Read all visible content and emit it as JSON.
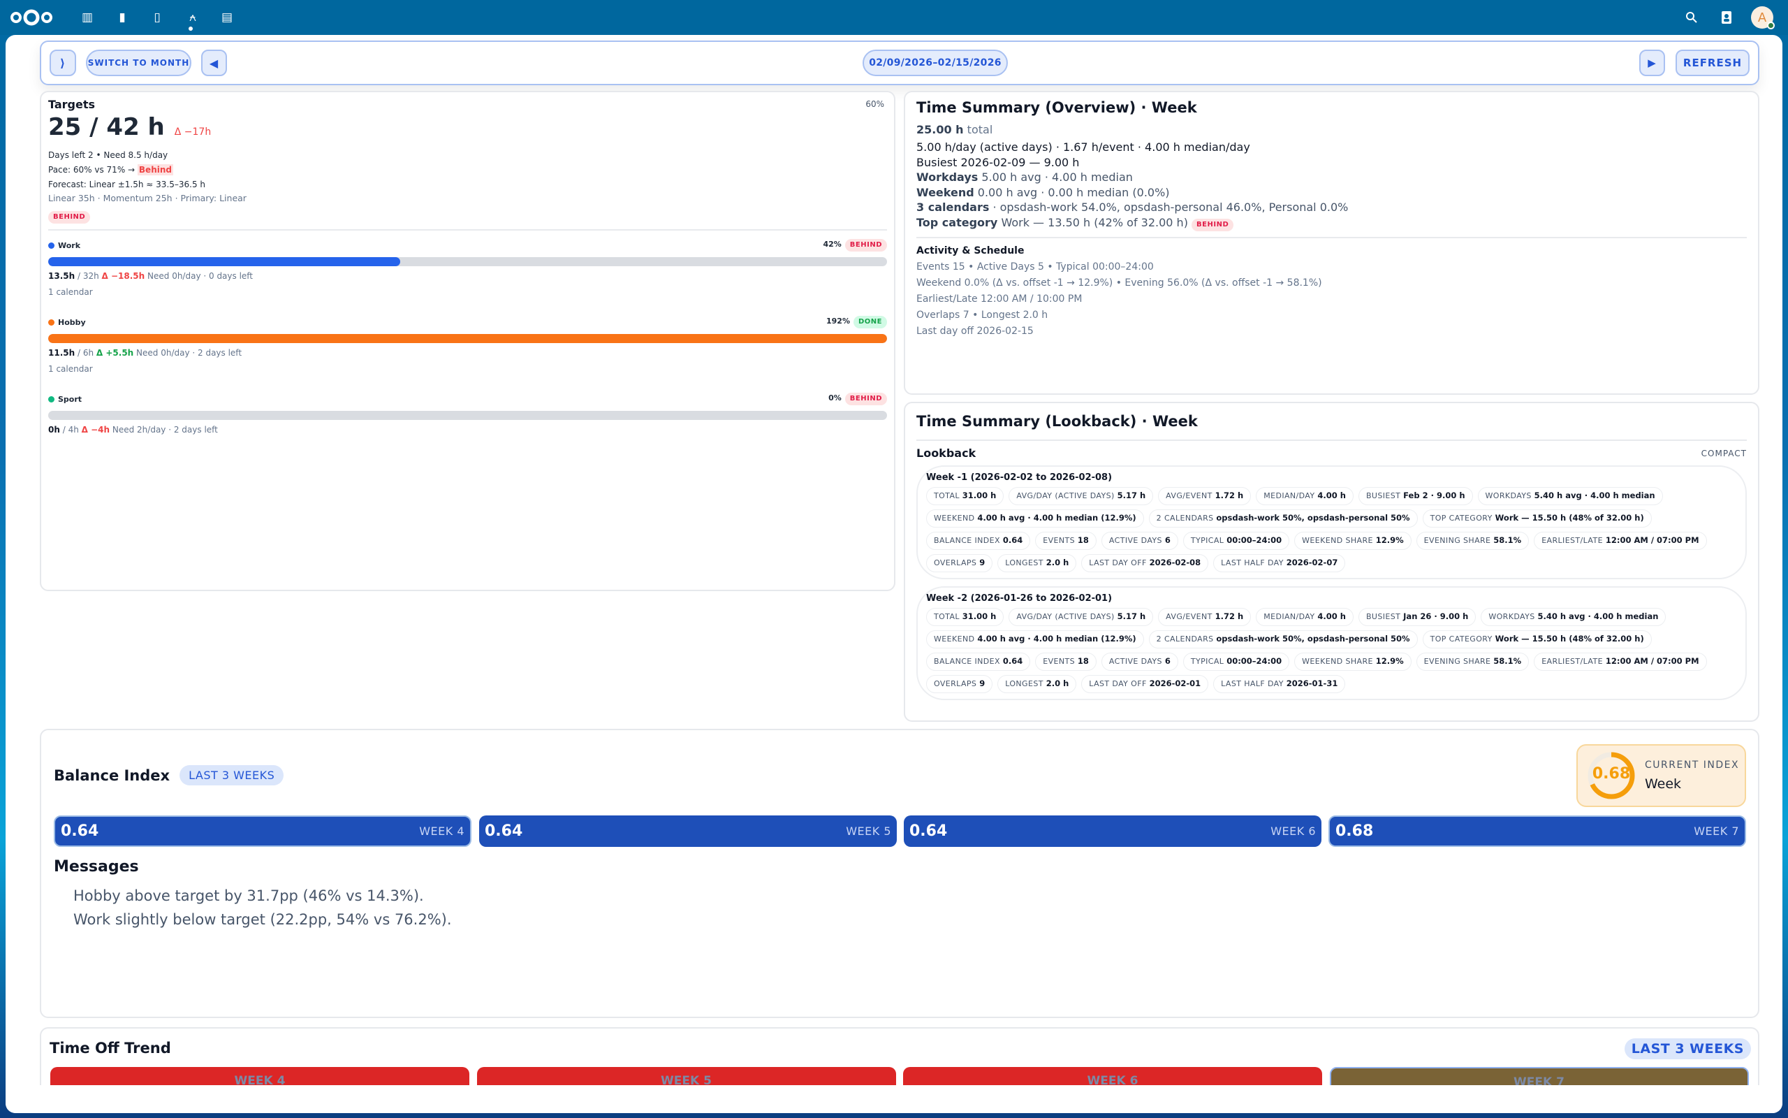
{
  "topbar": {
    "apps": [
      {
        "name": "dashboard-icon",
        "glyph": "▥"
      },
      {
        "name": "files-icon",
        "glyph": "▮"
      },
      {
        "name": "calendar-icon",
        "glyph": "▯"
      },
      {
        "name": "opsdash-icon",
        "glyph": "⍲"
      },
      {
        "name": "deck-icon",
        "glyph": "▤"
      }
    ],
    "avatar_initial": "A"
  },
  "toolbar": {
    "collapse_label": "⟩",
    "switch_label": "SWITCH TO MONTH",
    "prev_label": "◀",
    "range_label": "02/09/2026–02/15/2026",
    "next_label": "▶",
    "refresh_label": "REFRESH"
  },
  "targets": {
    "title": "Targets",
    "total": "25 / 42 h",
    "delta": "Δ −17h",
    "percent": "60%",
    "days_left": "Days left 2 • Need 8.5 h/day",
    "pace_prefix": "Pace: 60% vs 71% → ",
    "pace_status": "Behind",
    "forecast": "Forecast: Linear ±1.5h ≈ 33.5–36.5 h",
    "forecast_detail": "Linear 35h · Momentum 25h · Primary: Linear",
    "status": "BEHIND",
    "categories": [
      {
        "name": "Work",
        "color": "#2563eb",
        "percent": "42%",
        "progress": 42,
        "status": "BEHIND",
        "done": false,
        "actual": "13.5h",
        "target": "/ 32h",
        "delta": "Δ −18.5h",
        "delta_positive": false,
        "need": "Need 0h/day · 0 days left",
        "calendars": "1 calendar"
      },
      {
        "name": "Hobby",
        "color": "#f97316",
        "percent": "192%",
        "progress": 100,
        "status": "DONE",
        "done": true,
        "actual": "11.5h",
        "target": "/ 6h",
        "delta": "Δ +5.5h",
        "delta_positive": true,
        "need": "Need 0h/day · 2 days left",
        "calendars": "1 calendar"
      },
      {
        "name": "Sport",
        "color": "#10b981",
        "percent": "0%",
        "progress": 0,
        "status": "BEHIND",
        "done": false,
        "actual": "0h",
        "target": "/ 4h",
        "delta": "Δ −4h",
        "delta_positive": false,
        "need": "Need 2h/day · 2 days left",
        "calendars": ""
      }
    ]
  },
  "overview": {
    "title": "Time Summary (Overview) · Week",
    "total": "25.00 h",
    "total_suffix": "total",
    "line1": "5.00 h/day (active days) · 1.67 h/event · 4.00 h median/day",
    "line2": "Busiest 2026-02-09 — 9.00 h",
    "workdays_label": "Workdays",
    "workdays": "5.00 h avg · 4.00 h median",
    "weekend_label": "Weekend",
    "weekend": "0.00 h avg · 0.00 h median (0.0%)",
    "calendars_label": "3 calendars",
    "calendars": "· opsdash-work 54.0%, opsdash-personal 46.0%, Personal 0.0%",
    "top_label": "Top category",
    "top": "Work — 13.50 h (42% of 32.00 h)",
    "top_status": "BEHIND",
    "activity_title": "Activity & Schedule",
    "activity": [
      "Events 15 • Active Days 5 • Typical 00:00–24:00",
      "Weekend 0.0%  (Δ vs. offset -1 → 12.9%)  • Evening 56.0%  (Δ vs. offset -1 → 58.1%)",
      "Earliest/Late 12:00 AM / 10:00 PM",
      "Overlaps 7 • Longest 2.0 h",
      "Last day off 2026-02-15"
    ]
  },
  "lookback": {
    "title": "Time Summary (Lookback) · Week",
    "section": "Lookback",
    "mode": "COMPACT",
    "weeks": [
      {
        "title": "Week -1 (2026-02-02 to 2026-02-08)",
        "chips": [
          [
            "TOTAL",
            "31.00 h"
          ],
          [
            "AVG/DAY (ACTIVE DAYS)",
            "5.17 h"
          ],
          [
            "AVG/EVENT",
            "1.72 h"
          ],
          [
            "MEDIAN/DAY",
            "4.00 h"
          ],
          [
            "BUSIEST",
            "Feb 2 · 9.00 h"
          ],
          [
            "WORKDAYS",
            "5.40 h avg · 4.00 h median"
          ],
          [
            "WEEKEND",
            "4.00 h avg · 4.00 h median (12.9%)"
          ],
          [
            "2 CALENDARS",
            "opsdash-work 50%, opsdash-personal 50%"
          ],
          [
            "TOP CATEGORY",
            "Work — 15.50 h (48% of 32.00 h)"
          ],
          [
            "BALANCE INDEX",
            "0.64"
          ],
          [
            "EVENTS",
            "18"
          ],
          [
            "ACTIVE DAYS",
            "6"
          ],
          [
            "TYPICAL",
            "00:00–24:00"
          ],
          [
            "WEEKEND SHARE",
            "12.9%"
          ],
          [
            "EVENING SHARE",
            "58.1%"
          ],
          [
            "EARLIEST/LATE",
            "12:00 AM / 07:00 PM"
          ],
          [
            "OVERLAPS",
            "9"
          ],
          [
            "LONGEST",
            "2.0 h"
          ],
          [
            "LAST DAY OFF",
            "2026-02-08"
          ],
          [
            "LAST HALF DAY",
            "2026-02-07"
          ]
        ]
      },
      {
        "title": "Week -2 (2026-01-26 to 2026-02-01)",
        "chips": [
          [
            "TOTAL",
            "31.00 h"
          ],
          [
            "AVG/DAY (ACTIVE DAYS)",
            "5.17 h"
          ],
          [
            "AVG/EVENT",
            "1.72 h"
          ],
          [
            "MEDIAN/DAY",
            "4.00 h"
          ],
          [
            "BUSIEST",
            "Jan 26 · 9.00 h"
          ],
          [
            "WORKDAYS",
            "5.40 h avg · 4.00 h median"
          ],
          [
            "WEEKEND",
            "4.00 h avg · 4.00 h median (12.9%)"
          ],
          [
            "2 CALENDARS",
            "opsdash-work 50%, opsdash-personal 50%"
          ],
          [
            "TOP CATEGORY",
            "Work — 15.50 h (48% of 32.00 h)"
          ],
          [
            "BALANCE INDEX",
            "0.64"
          ],
          [
            "EVENTS",
            "18"
          ],
          [
            "ACTIVE DAYS",
            "6"
          ],
          [
            "TYPICAL",
            "00:00–24:00"
          ],
          [
            "WEEKEND SHARE",
            "12.9%"
          ],
          [
            "EVENING SHARE",
            "58.1%"
          ],
          [
            "EARLIEST/LATE",
            "12:00 AM / 07:00 PM"
          ],
          [
            "OVERLAPS",
            "9"
          ],
          [
            "LONGEST",
            "2.0 h"
          ],
          [
            "LAST DAY OFF",
            "2026-02-01"
          ],
          [
            "LAST HALF DAY",
            "2026-01-31"
          ]
        ]
      }
    ]
  },
  "balance": {
    "title": "Balance Index",
    "range_badge": "LAST 3 WEEKS",
    "current_label": "CURRENT INDEX",
    "current_value": "0.68",
    "current_fraction": 0.68,
    "current_period": "Week",
    "tiles": [
      {
        "value": "0.64",
        "label": "WEEK 4"
      },
      {
        "value": "0.64",
        "label": "WEEK 5"
      },
      {
        "value": "0.64",
        "label": "WEEK 6"
      },
      {
        "value": "0.68",
        "label": "WEEK 7"
      }
    ],
    "messages_title": "Messages",
    "messages": [
      "Hobby above target by 31.7pp (46% vs 14.3%).",
      "Work slightly below target (22.2pp, 54% vs 76.2%)."
    ]
  },
  "time_off": {
    "title": "Time Off Trend",
    "range_badge": "LAST 3 WEEKS",
    "tiles": [
      {
        "label": "WEEK 4",
        "color": "#dc2626"
      },
      {
        "label": "WEEK 5",
        "color": "#dc2626"
      },
      {
        "label": "WEEK 6",
        "color": "#dc2626"
      },
      {
        "label": "WEEK 7",
        "color": "#7a6336"
      }
    ]
  }
}
